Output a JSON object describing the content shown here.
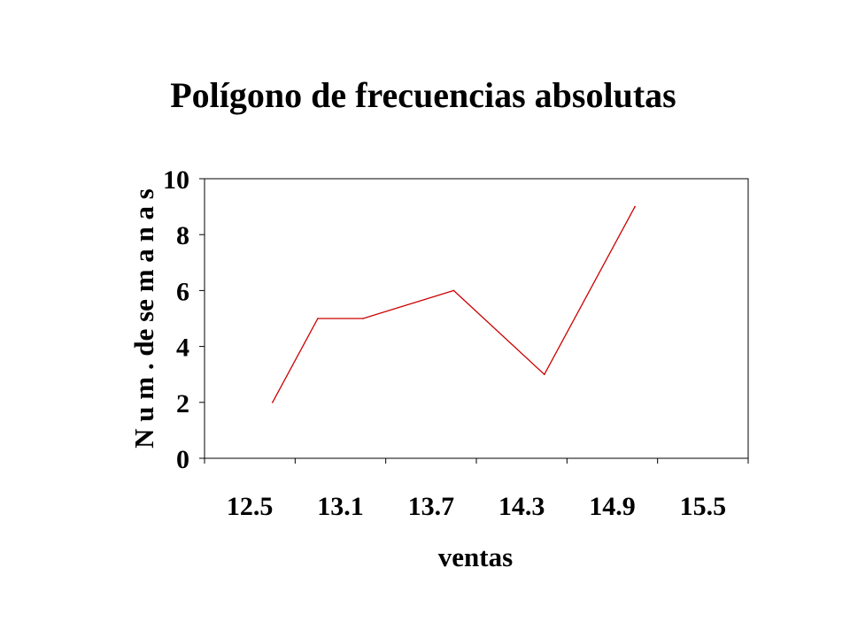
{
  "chart_data": {
    "type": "line",
    "title": "Polígono de frecuencias absolutas",
    "xlabel": "ventas",
    "ylabel": "N u m . de  se m a n a s",
    "categories": [
      "12.5",
      "13.1",
      "13.7",
      "14.3",
      "14.9",
      "15.5"
    ],
    "category_positions": [
      12.5,
      12.8,
      13.1,
      13.4,
      13.7,
      14.0,
      14.3,
      14.6,
      14.9,
      15.2,
      15.5,
      15.8
    ],
    "x": [
      12.8,
      13.1,
      13.4,
      14.0,
      14.6,
      15.2
    ],
    "series": [
      {
        "values": [
          2,
          5,
          5,
          6,
          3,
          9
        ]
      }
    ],
    "ylim": [
      0,
      10
    ],
    "yticks": [
      "0",
      "2",
      "4",
      "6",
      "8",
      "10"
    ],
    "grid": false,
    "line_color": "#cc0000"
  }
}
